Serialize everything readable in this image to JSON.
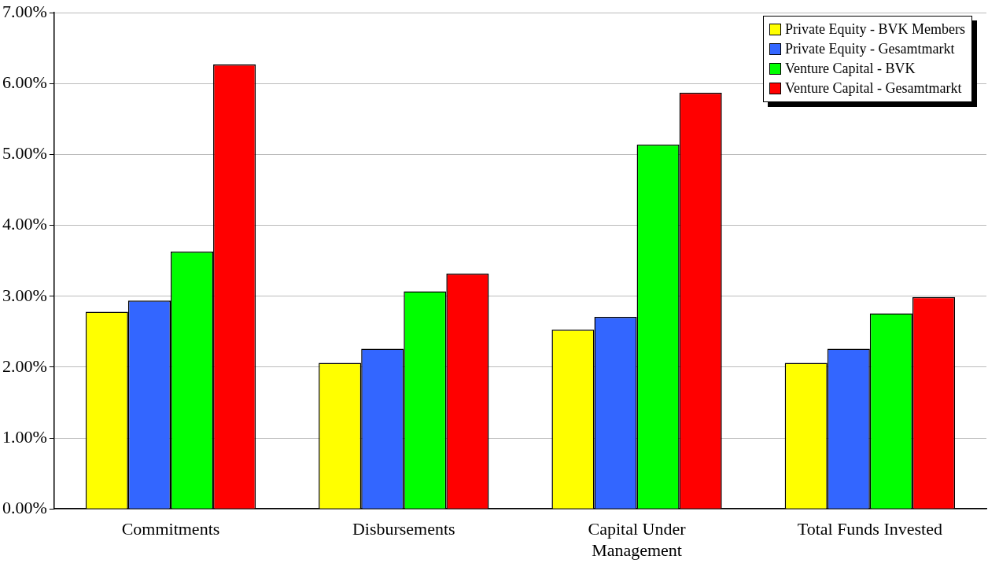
{
  "chart_data": {
    "type": "bar",
    "categories": [
      "Commitments",
      "Disbursements",
      "Capital Under Management",
      "Total Funds Invested"
    ],
    "series": [
      {
        "name": "Private Equity - BVK Members",
        "color": "#ffff00",
        "values": [
          2.78,
          2.06,
          2.53,
          2.06
        ]
      },
      {
        "name": "Private Equity - Gesamtmarkt",
        "color": "#3366ff",
        "values": [
          2.94,
          2.26,
          2.71,
          2.26
        ]
      },
      {
        "name": "Venture Capital - BVK",
        "color": "#00ff00",
        "values": [
          3.63,
          3.07,
          5.14,
          2.76
        ]
      },
      {
        "name": "Venture Capital - Gesamtmarkt",
        "color": "#ff0000",
        "values": [
          6.27,
          3.32,
          5.87,
          2.99
        ]
      }
    ],
    "ylim": [
      0,
      7
    ],
    "yticks": [
      {
        "value": 0,
        "label": "0.00%"
      },
      {
        "value": 1,
        "label": "1.00%"
      },
      {
        "value": 2,
        "label": "2.00%"
      },
      {
        "value": 3,
        "label": "3.00%"
      },
      {
        "value": 4,
        "label": "4.00%"
      },
      {
        "value": 5,
        "label": "5.00%"
      },
      {
        "value": 6,
        "label": "6.00%"
      },
      {
        "value": 7,
        "label": "7.00%"
      }
    ],
    "grid": "y",
    "legend": "top right"
  }
}
